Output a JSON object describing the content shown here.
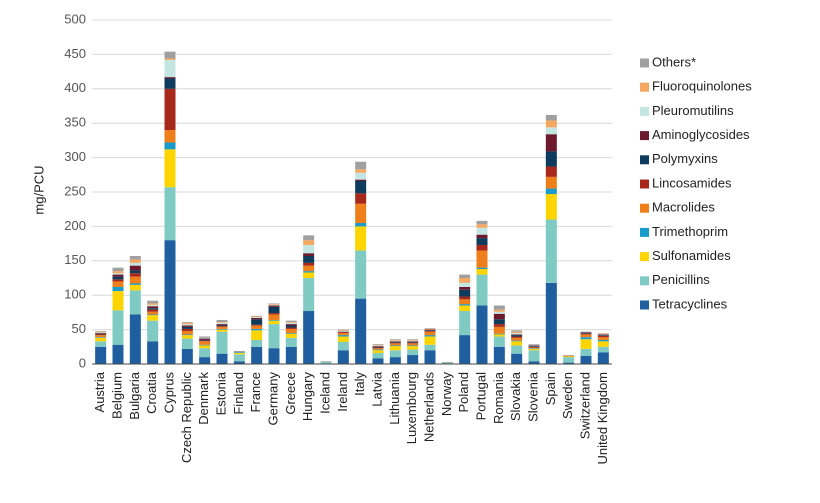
{
  "chart_data": {
    "type": "stacked_bar",
    "y_label": "mg/PCU",
    "categories": [
      "Austria",
      "Belgium",
      "Bulgaria",
      "Croatia",
      "Cyprus",
      "Czech Republic",
      "Denmark",
      "Estonia",
      "Finland",
      "France",
      "Germany",
      "Greece",
      "Hungary",
      "Iceland",
      "Ireland",
      "Italy",
      "Latvia",
      "Lithuania",
      "Luxembourg",
      "Netherlands",
      "Norway",
      "Poland",
      "Portugal",
      "Romania",
      "Slovakia",
      "Slovenia",
      "Spain",
      "Sweden",
      "Switzerland",
      "United Kingdom"
    ],
    "series": [
      {
        "name": "Tetracyclines",
        "color": "#1f5fa0",
        "values": [
          25,
          28,
          72,
          33,
          180,
          22,
          10,
          15,
          4,
          25,
          23,
          25,
          77,
          1,
          20,
          95,
          8,
          10,
          13,
          20,
          0,
          42,
          85,
          25,
          15,
          4,
          118,
          2,
          12,
          17
        ]
      },
      {
        "name": "Penicillins",
        "color": "#7fcbc4",
        "values": [
          8,
          50,
          35,
          30,
          77,
          15,
          13,
          32,
          10,
          10,
          35,
          13,
          48,
          2,
          12,
          70,
          8,
          10,
          8,
          8,
          2,
          35,
          45,
          15,
          12,
          16,
          92,
          8,
          10,
          8
        ]
      },
      {
        "name": "Sulfonamides",
        "color": "#ffd400",
        "values": [
          5,
          28,
          8,
          8,
          55,
          5,
          4,
          3,
          2,
          14,
          5,
          6,
          8,
          0,
          8,
          35,
          4,
          6,
          5,
          12,
          0,
          8,
          8,
          3,
          6,
          2,
          37,
          1,
          14,
          8
        ]
      },
      {
        "name": "Trimethoprim",
        "color": "#1a9bc9",
        "values": [
          1,
          6,
          2,
          1,
          10,
          1,
          1,
          1,
          1,
          2,
          1,
          1,
          2,
          0,
          2,
          5,
          1,
          1,
          1,
          2,
          0,
          2,
          2,
          1,
          1,
          1,
          8,
          0,
          3,
          2
        ]
      },
      {
        "name": "Macrolides",
        "color": "#ee7f1b",
        "values": [
          3,
          8,
          10,
          4,
          18,
          5,
          5,
          3,
          0,
          5,
          8,
          6,
          8,
          0,
          3,
          28,
          2,
          3,
          3,
          5,
          0,
          7,
          25,
          10,
          4,
          1,
          17,
          1,
          4,
          4
        ]
      },
      {
        "name": "Lincosamides",
        "color": "#a8281c",
        "values": [
          1,
          3,
          5,
          3,
          60,
          3,
          1,
          1,
          0,
          1,
          2,
          2,
          4,
          0,
          1,
          15,
          1,
          1,
          1,
          1,
          0,
          4,
          8,
          4,
          2,
          1,
          15,
          0,
          1,
          2
        ]
      },
      {
        "name": "Polymyxins",
        "color": "#0d3c5c",
        "values": [
          1,
          4,
          4,
          2,
          15,
          3,
          1,
          1,
          0,
          8,
          9,
          3,
          10,
          0,
          0,
          18,
          1,
          1,
          1,
          1,
          0,
          10,
          10,
          7,
          2,
          1,
          22,
          0,
          1,
          1
        ]
      },
      {
        "name": "Aminoglycosides",
        "color": "#6e1a2e",
        "values": [
          1,
          3,
          7,
          3,
          2,
          2,
          2,
          2,
          0,
          2,
          2,
          2,
          4,
          0,
          1,
          2,
          1,
          1,
          1,
          1,
          0,
          4,
          5,
          8,
          1,
          1,
          25,
          0,
          1,
          1
        ]
      },
      {
        "name": "Pleuromutilins",
        "color": "#c4e6e3",
        "values": [
          1,
          2,
          4,
          2,
          25,
          2,
          1,
          2,
          0,
          1,
          1,
          2,
          12,
          0,
          1,
          10,
          1,
          1,
          1,
          0,
          0,
          6,
          10,
          3,
          2,
          1,
          10,
          0,
          0,
          1
        ]
      },
      {
        "name": "Fluoroquinolones",
        "color": "#f6a860",
        "values": [
          1,
          3,
          5,
          2,
          2,
          2,
          0,
          1,
          0,
          1,
          1,
          1,
          7,
          0,
          1,
          5,
          1,
          1,
          1,
          1,
          0,
          7,
          5,
          3,
          2,
          0,
          10,
          0,
          0,
          1
        ]
      },
      {
        "name": "Others*",
        "color": "#a0a0a0",
        "values": [
          1,
          5,
          5,
          4,
          10,
          1,
          2,
          3,
          2,
          1,
          1,
          2,
          7,
          1,
          1,
          11,
          1,
          1,
          1,
          1,
          1,
          5,
          5,
          6,
          2,
          1,
          8,
          1,
          1,
          0
        ]
      }
    ],
    "ylim": [
      0,
      500
    ],
    "yticks": [
      0,
      50,
      100,
      150,
      200,
      250,
      300,
      350,
      400,
      450,
      500
    ],
    "grid": true
  }
}
